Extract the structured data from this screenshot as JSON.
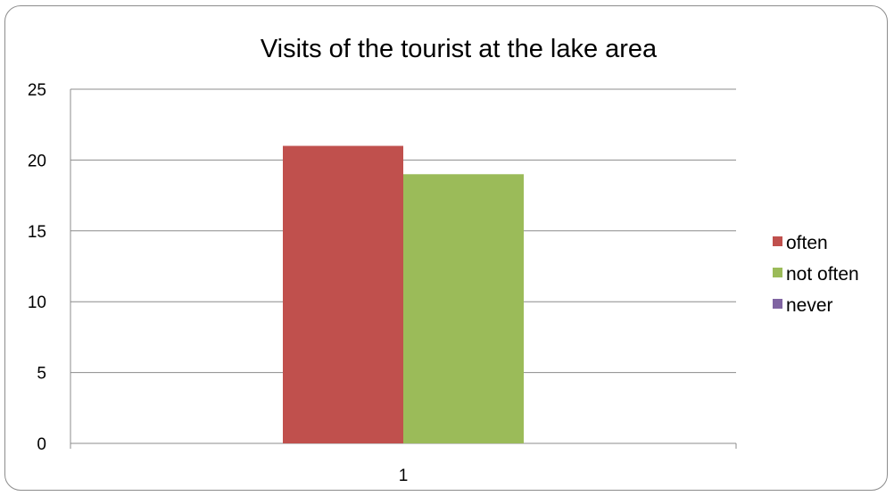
{
  "chart_data": {
    "type": "bar",
    "title": "Visits of the tourist at the lake area",
    "xlabel": "",
    "ylabel": "",
    "categories": [
      "1"
    ],
    "series": [
      {
        "name": "often",
        "values": [
          21
        ],
        "color": "#c0504d"
      },
      {
        "name": "not often",
        "values": [
          19
        ],
        "color": "#9bbb59"
      },
      {
        "name": "never",
        "values": [
          0
        ],
        "color": "#8064a2"
      }
    ],
    "ylim": [
      0,
      25
    ],
    "yticks": [
      0,
      5,
      10,
      15,
      20,
      25
    ],
    "grid": true,
    "legend_position": "right"
  }
}
